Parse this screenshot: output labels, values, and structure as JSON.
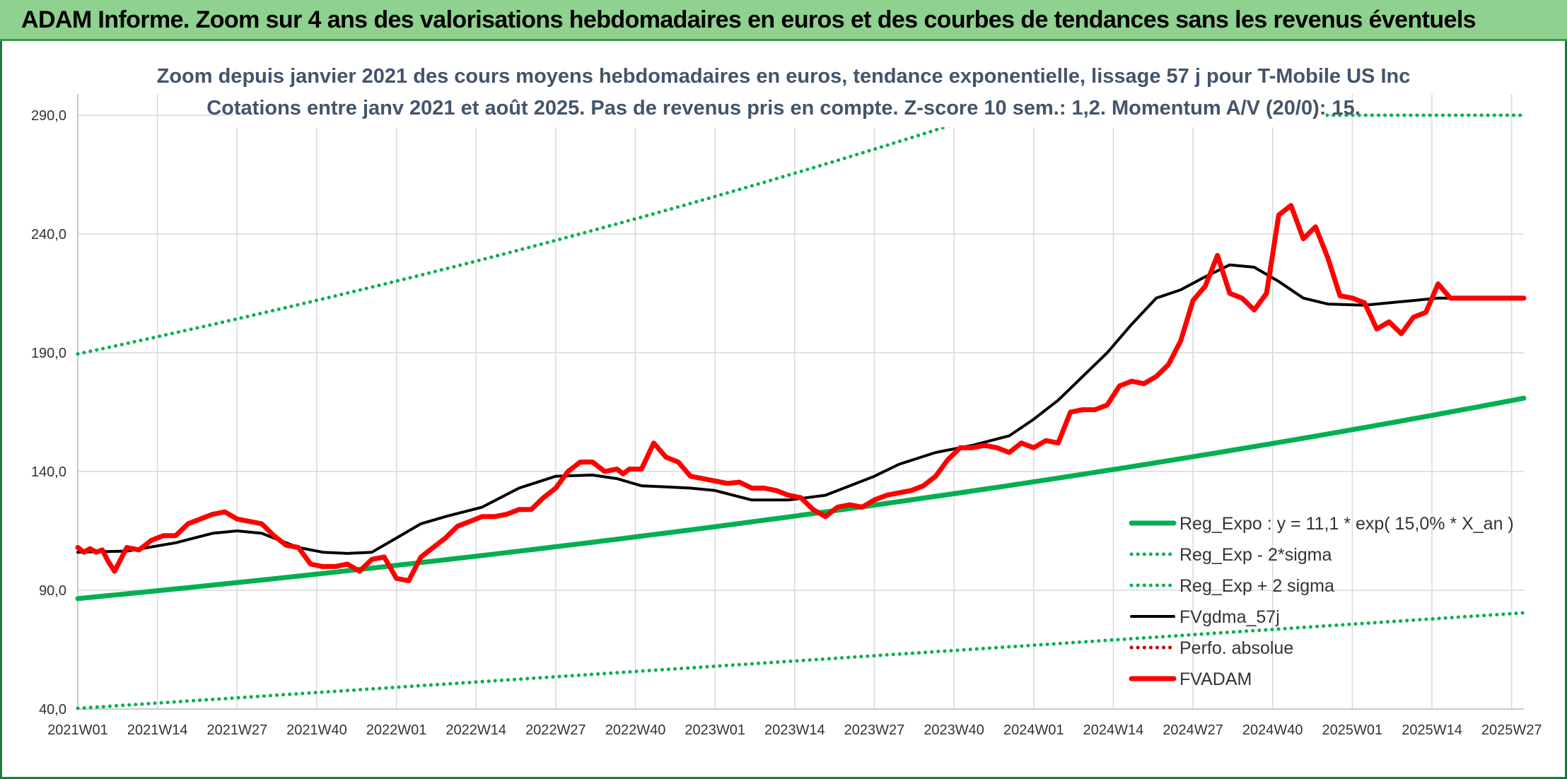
{
  "banner": {
    "title": "ADAM Informe. Zoom sur 4 ans des valorisations hebdomadaires en euros et des courbes de tendances sans les revenus éventuels"
  },
  "colors": {
    "banner_bg": "#8fd18f",
    "reg_expo": "#00b050",
    "sigma": "#00b050",
    "fvgdma": "#000000",
    "perfo": "#c00000",
    "fvadam": "#ff0000"
  },
  "chart_data": {
    "type": "line",
    "title": "Zoom depuis janvier 2021 des cours moyens hebdomadaires en euros, tendance exponentielle, lissage 57 j pour T-Mobile US Inc",
    "subtitle": "Cotations entre janv 2021 et août 2025. Pas de revenus pris en compte. Z-score 10 sem.: 1,2. Momentum A/V (20/0): 15.",
    "ylim": [
      40,
      290
    ],
    "yticks": [
      "40,0",
      "90,0",
      "140,0",
      "190,0",
      "240,0",
      "290,0"
    ],
    "yticks_values": [
      40,
      90,
      140,
      190,
      240,
      290
    ],
    "xticks": [
      "2021W01",
      "2021W14",
      "2021W27",
      "2021W40",
      "2022W01",
      "2022W14",
      "2022W27",
      "2022W40",
      "2023W01",
      "2023W14",
      "2023W27",
      "2023W40",
      "2024W01",
      "2024W14",
      "2024W27",
      "2024W40",
      "2025W01",
      "2025W14",
      "2025W27"
    ],
    "x_range": [
      "2021W01",
      "2025W36"
    ],
    "grid": true,
    "legend_position": "bottom-right",
    "series": [
      {
        "name": "Reg_Expo : y = 11,1 * exp( 15,0% *  X_an )",
        "style": "solid",
        "width": 7,
        "color": "#00b050",
        "x": [
          0,
          236
        ],
        "y_start": 86.5,
        "growth": 0.15
      },
      {
        "name": "Reg_Exp - 2*sigma",
        "style": "dotted",
        "color": "#00b050",
        "x": [
          0,
          236
        ],
        "y_start": 40.3,
        "y_end": 80.5
      },
      {
        "name": "Reg_Exp + 2 sigma",
        "style": "dotted",
        "color": "#00b050",
        "x": [
          0,
          236
        ],
        "y_start": 189.5,
        "growth": 0.15,
        "cap": 290
      },
      {
        "name": "FVgdma_57j",
        "style": "solid",
        "width": 4,
        "color": "#000000",
        "x": [
          0,
          8,
          16,
          22,
          26,
          30,
          36,
          40,
          44,
          48,
          52,
          56,
          60,
          66,
          72,
          78,
          84,
          88,
          92,
          96,
          100,
          104,
          110,
          116,
          122,
          126,
          130,
          134,
          140,
          146,
          152,
          156,
          160,
          164,
          168,
          172,
          176,
          180,
          184,
          188,
          192,
          196,
          200,
          204,
          210,
          214,
          218,
          222,
          226,
          230,
          236
        ],
        "y": [
          106,
          106.5,
          110,
          114,
          115,
          114,
          108,
          106,
          105.5,
          106,
          112,
          118,
          121,
          125,
          133,
          138,
          138.5,
          137,
          134,
          133.5,
          133,
          132,
          128,
          128,
          130,
          134,
          138,
          143,
          148,
          151,
          155,
          162,
          170,
          180,
          190,
          202,
          213,
          216.5,
          222,
          227,
          226,
          220,
          213,
          210.5,
          210,
          211,
          212,
          213,
          213,
          213,
          213
        ]
      },
      {
        "name": "Perfo. absolue",
        "style": "dotted",
        "color": "#c00000",
        "legend_only": true
      },
      {
        "name": "FVADAM",
        "style": "solid",
        "width": 7,
        "color": "#ff0000",
        "x": [
          0,
          1,
          2,
          3,
          4,
          5,
          6,
          7,
          8,
          10,
          12,
          14,
          16,
          18,
          20,
          22,
          24,
          26,
          28,
          30,
          32,
          34,
          36,
          38,
          40,
          42,
          44,
          46,
          48,
          50,
          52,
          54,
          56,
          58,
          60,
          62,
          64,
          66,
          68,
          70,
          72,
          74,
          76,
          78,
          80,
          82,
          84,
          86,
          88,
          89,
          90,
          92,
          94,
          96,
          98,
          100,
          102,
          104,
          106,
          108,
          110,
          112,
          114,
          116,
          118,
          120,
          122,
          124,
          126,
          128,
          130,
          132,
          134,
          136,
          138,
          140,
          142,
          144,
          146,
          148,
          150,
          152,
          154,
          156,
          158,
          160,
          162,
          164,
          166,
          168,
          170,
          172,
          174,
          176,
          178,
          180,
          182,
          184,
          186,
          188,
          190,
          192,
          194,
          196,
          198,
          200,
          202,
          204,
          206,
          208,
          210,
          212,
          214,
          216,
          218,
          220,
          222,
          224,
          226,
          228,
          230,
          232,
          234,
          236
        ],
        "y": [
          108,
          106,
          107.5,
          106,
          107,
          102,
          98,
          103,
          108,
          107,
          111,
          113,
          113,
          118,
          120,
          122,
          123,
          120,
          119,
          118,
          113,
          109,
          108,
          101,
          100,
          100,
          101,
          98,
          103,
          104,
          95,
          94,
          104,
          108,
          112,
          117,
          119,
          121,
          121,
          122,
          124,
          124,
          129,
          133,
          140,
          144,
          144,
          140,
          141,
          139,
          141,
          141,
          152,
          146,
          144,
          138,
          137,
          136,
          135,
          135.5,
          133,
          133,
          132,
          130,
          129,
          124,
          121,
          125,
          126,
          125,
          128,
          130,
          131,
          132,
          134,
          138,
          145,
          150,
          150,
          151,
          150,
          148,
          152,
          150,
          153,
          152,
          165,
          166,
          166,
          168,
          176,
          178,
          177,
          180,
          185,
          195,
          212,
          218,
          231,
          215,
          213,
          208,
          215,
          248,
          252,
          238,
          243,
          230,
          214,
          213,
          211,
          200,
          203,
          198,
          205,
          207,
          219,
          213,
          213,
          213,
          213,
          213,
          213,
          213
        ]
      }
    ]
  }
}
